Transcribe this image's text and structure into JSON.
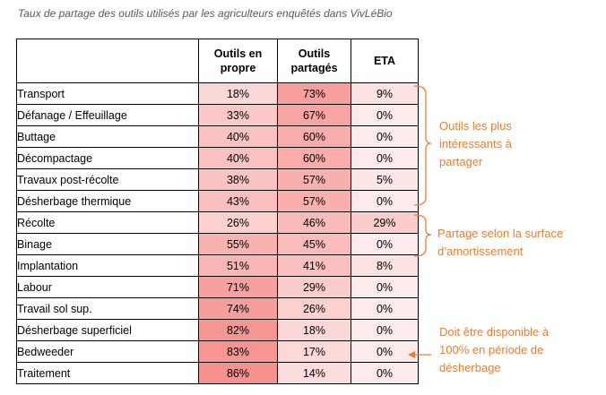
{
  "caption": "Taux de partage des outils utilisés par les agriculteurs enquêtés dans VivLéBio",
  "table": {
    "headers": [
      "",
      "Outils en propre",
      "Outils partagés",
      "ETA"
    ],
    "rows": [
      {
        "label": "Transport",
        "propre": "18%",
        "partages": "73%",
        "eta": "9%"
      },
      {
        "label": "Défanage / Effeuillage",
        "propre": "33%",
        "partages": "67%",
        "eta": "0%"
      },
      {
        "label": "Buttage",
        "propre": "40%",
        "partages": "60%",
        "eta": "0%"
      },
      {
        "label": "Décompactage",
        "propre": "40%",
        "partages": "60%",
        "eta": "0%"
      },
      {
        "label": "Travaux post-récolte",
        "propre": "38%",
        "partages": "57%",
        "eta": "5%"
      },
      {
        "label": "Désherbage thermique",
        "propre": "43%",
        "partages": "57%",
        "eta": "0%"
      },
      {
        "label": "Récolte",
        "propre": "26%",
        "partages": "46%",
        "eta": "29%"
      },
      {
        "label": "Binage",
        "propre": "55%",
        "partages": "45%",
        "eta": "0%"
      },
      {
        "label": "Implantation",
        "propre": "51%",
        "partages": "41%",
        "eta": "8%"
      },
      {
        "label": "Labour",
        "propre": "71%",
        "partages": "29%",
        "eta": "0%"
      },
      {
        "label": "Travail sol sup.",
        "propre": "74%",
        "partages": "26%",
        "eta": "0%"
      },
      {
        "label": "Désherbage superficiel",
        "propre": "82%",
        "partages": "18%",
        "eta": "0%"
      },
      {
        "label": "Bedweeder",
        "propre": "83%",
        "partages": "17%",
        "eta": "0%"
      },
      {
        "label": "Traitement",
        "propre": "86%",
        "partages": "14%",
        "eta": "0%"
      }
    ]
  },
  "annotations": {
    "group1": [
      "Outils les plus",
      "intéressants à",
      "partager"
    ],
    "group2": [
      "Partage selon la surface",
      "d’amortissement"
    ],
    "note": [
      "Doit être disponible à",
      "100% en période de",
      "désherbage"
    ]
  },
  "colors": {
    "annotation": "#ED7D31",
    "heat_low": "#FDEBEB",
    "heat_high": "#F4837F"
  }
}
